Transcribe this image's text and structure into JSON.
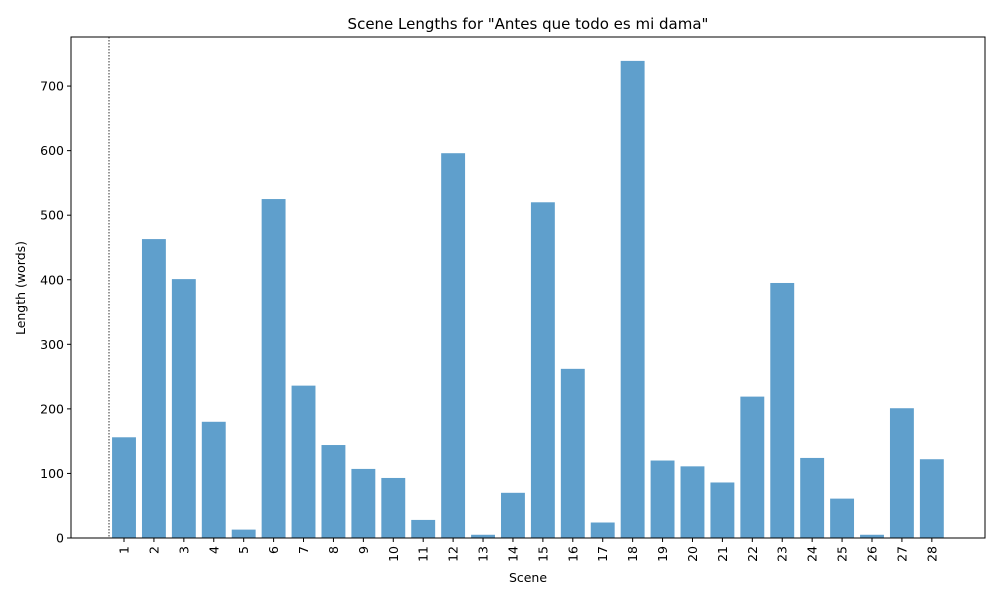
{
  "chart_data": {
    "type": "bar",
    "title": "Scene Lengths for \"Antes que todo es mi dama\"",
    "xlabel": "Scene",
    "ylabel": "Length (words)",
    "categories": [
      "1",
      "2",
      "3",
      "4",
      "5",
      "6",
      "7",
      "8",
      "9",
      "10",
      "11",
      "12",
      "13",
      "14",
      "15",
      "16",
      "17",
      "18",
      "19",
      "20",
      "21",
      "22",
      "23",
      "24",
      "25",
      "26",
      "27",
      "28"
    ],
    "values": [
      156,
      463,
      401,
      180,
      13,
      525,
      236,
      144,
      107,
      93,
      28,
      596,
      5,
      70,
      520,
      262,
      24,
      739,
      120,
      111,
      86,
      219,
      395,
      124,
      61,
      5,
      201,
      122
    ],
    "ylim": [
      0,
      776
    ],
    "yticks": [
      0,
      100,
      200,
      300,
      400,
      500,
      600,
      700
    ],
    "bar_color": "#5f9fcc",
    "grid": false,
    "reference_line": {
      "style": "dotted",
      "color": "#000000",
      "position": "before first bar"
    }
  }
}
